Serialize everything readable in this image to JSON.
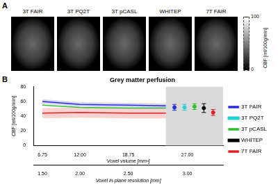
{
  "letters": [
    "A",
    "B"
  ],
  "panel_a": {
    "labels": [
      "3T FAIR",
      "3T PQ2T",
      "3T pCASL",
      "WHITEP",
      "7T FAIR"
    ],
    "colorbar": {
      "label": "CBF [ml/100g/min]",
      "ticks": [
        0,
        100
      ]
    }
  },
  "chart_data": {
    "type": "line",
    "title": "Grey matter perfusion",
    "y_label": "CBF [ml/100g/min]",
    "x_label": "Voxel volume [mm³]",
    "x2_label": "Voxel in-plane resolution [mm]",
    "xlim": [
      5.5,
      32
    ],
    "xticks": [
      {
        "value": 6.75,
        "label": "6.75"
      },
      {
        "value": 12,
        "label": "12.00"
      },
      {
        "value": 18.75,
        "label": "18.75"
      },
      {
        "value": 27,
        "label": "27.00"
      }
    ],
    "x2ticks": [
      {
        "value": 6.75,
        "label": "1.50"
      },
      {
        "value": 12,
        "label": "2.00"
      },
      {
        "value": 18.75,
        "label": "2.50"
      },
      {
        "value": 27,
        "label": "3.00"
      }
    ],
    "ylim": [
      0,
      80
    ],
    "yticks": [
      0,
      20,
      40,
      60,
      80
    ],
    "shaded_region": [
      24,
      32
    ],
    "grid": false,
    "legend": "right",
    "series": [
      {
        "name": "3T FAIR",
        "color": "#2b2bd6",
        "x": [
          6.75,
          12,
          18.75,
          24
        ],
        "values": [
          60,
          56,
          55,
          54
        ],
        "lower": [
          57,
          53,
          52,
          51
        ],
        "upper": [
          63,
          59,
          58,
          57
        ],
        "point": {
          "x": 25.2,
          "value": 52,
          "error": 4
        }
      },
      {
        "name": "3T PQ2T",
        "color": "#22d3d3",
        "point": {
          "x": 26.6,
          "value": 52,
          "error": 4
        }
      },
      {
        "name": "3T pCASL",
        "color": "#2fbf2f",
        "x": [
          6.75,
          12,
          18.75,
          24
        ],
        "values": [
          55,
          52,
          51,
          51
        ],
        "point": {
          "x": 28,
          "value": 53,
          "error": 4
        }
      },
      {
        "name": "WHITEP",
        "color": "#000000",
        "point": {
          "x": 29.3,
          "value": 51,
          "error": 6
        }
      },
      {
        "name": "7T FAIR",
        "color": "#e02020",
        "x": [
          6.75,
          12,
          18.75,
          24
        ],
        "values": [
          44,
          45,
          44,
          44
        ],
        "lower": [
          37,
          38,
          37,
          37
        ],
        "upper": [
          51,
          52,
          51,
          51
        ],
        "point": {
          "x": 30.6,
          "value": 45,
          "error": 4
        }
      }
    ]
  }
}
